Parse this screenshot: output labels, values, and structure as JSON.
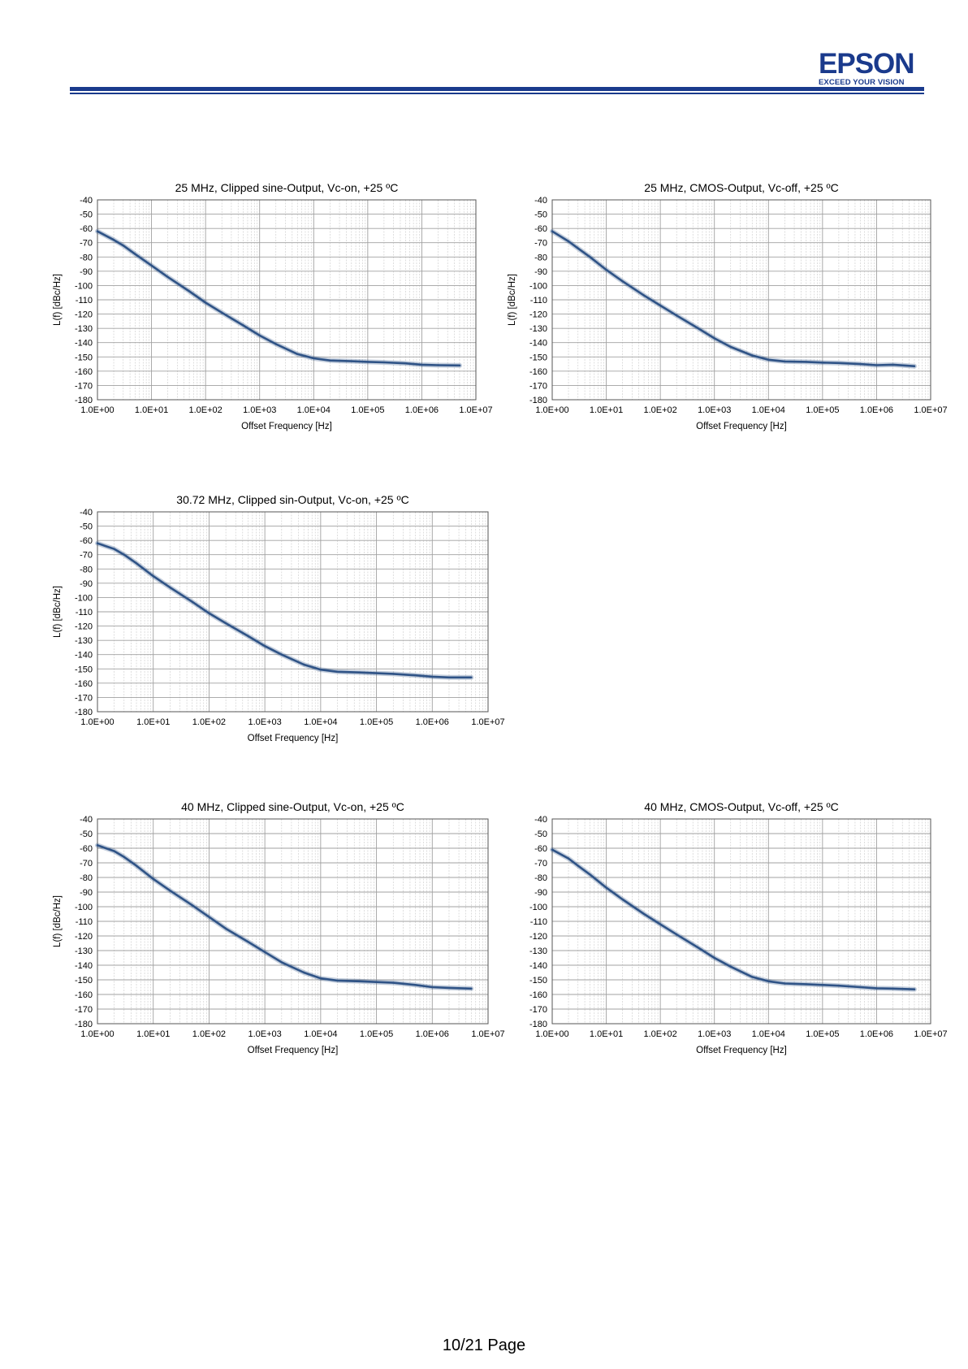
{
  "header": {
    "logo_text": "EPSON",
    "logo_tagline": "EXCEED YOUR VISION",
    "brand_color": "#1a3a8c"
  },
  "footer": {
    "page": "10/21 Page"
  },
  "chart_data": [
    {
      "type": "line",
      "title": "25 MHz, Clipped sine-Output, Vc-on, +25 ºC",
      "xlabel": "Offset Frequency [Hz]",
      "ylabel": "L(f) [dBc/Hz]",
      "x_scale": "log",
      "xlim": [
        1,
        10000000
      ],
      "ylim": [
        -180,
        -40
      ],
      "x_ticks": [
        "1.0E+00",
        "1.0E+01",
        "1.0E+02",
        "1.0E+03",
        "1.0E+04",
        "1.0E+05",
        "1.0E+06",
        "1.0E+07"
      ],
      "y_ticks": [
        "-40",
        "-50",
        "-60",
        "-70",
        "-80",
        "-90",
        "-100",
        "-110",
        "-120",
        "-130",
        "-140",
        "-150",
        "-160",
        "-170",
        "-180"
      ],
      "grid": true,
      "line_color": "#2f5386",
      "series": [
        {
          "x": [
            1,
            2,
            3,
            5,
            10,
            20,
            50,
            100,
            200,
            500,
            1000,
            2000,
            5000,
            10000,
            20000,
            50000,
            100000,
            200000,
            500000,
            1000000,
            2000000,
            5000000
          ],
          "y": [
            -62,
            -68,
            -72,
            -78,
            -86,
            -94,
            -104,
            -112,
            -119,
            -128,
            -135,
            -141,
            -148,
            -151,
            -152.5,
            -153,
            -153.5,
            -153.8,
            -154.5,
            -155.5,
            -155.8,
            -156
          ]
        }
      ]
    },
    {
      "type": "line",
      "title": "25 MHz, CMOS-Output, Vc-off, +25 ºC",
      "xlabel": "Offset Frequency [Hz]",
      "ylabel": "L(f) [dBc/Hz]",
      "x_scale": "log",
      "xlim": [
        1,
        10000000
      ],
      "ylim": [
        -180,
        -40
      ],
      "x_ticks": [
        "1.0E+00",
        "1.0E+01",
        "1.0E+02",
        "1.0E+03",
        "1.0E+04",
        "1.0E+05",
        "1.0E+06",
        "1.0E+07"
      ],
      "y_ticks": [
        "-40",
        "-50",
        "-60",
        "-70",
        "-80",
        "-90",
        "-100",
        "-110",
        "-120",
        "-130",
        "-140",
        "-150",
        "-160",
        "-170",
        "-180"
      ],
      "grid": true,
      "line_color": "#2f5386",
      "series": [
        {
          "x": [
            1,
            2,
            3,
            5,
            10,
            20,
            50,
            100,
            200,
            500,
            1000,
            2000,
            5000,
            10000,
            20000,
            50000,
            100000,
            200000,
            500000,
            1000000,
            2000000,
            5000000
          ],
          "y": [
            -62,
            -69,
            -74,
            -80,
            -89,
            -97,
            -107,
            -114,
            -121,
            -130,
            -137,
            -143,
            -149,
            -152,
            -153.2,
            -153.5,
            -154,
            -154.3,
            -155,
            -155.8,
            -155.5,
            -156.5
          ]
        }
      ]
    },
    {
      "type": "line",
      "title": "30.72 MHz, Clipped sin-Output, Vc-on, +25 ºC",
      "xlabel": "Offset Frequency [Hz]",
      "ylabel": "L(f) [dBc/Hz]",
      "x_scale": "log",
      "xlim": [
        1,
        10000000
      ],
      "ylim": [
        -180,
        -40
      ],
      "x_ticks": [
        "1.0E+00",
        "1.0E+01",
        "1.0E+02",
        "1.0E+03",
        "1.0E+04",
        "1.0E+05",
        "1.0E+06",
        "1.0E+07"
      ],
      "y_ticks": [
        "-40",
        "-50",
        "-60",
        "-70",
        "-80",
        "-90",
        "-100",
        "-110",
        "-120",
        "-130",
        "-140",
        "-150",
        "-160",
        "-170",
        "-180"
      ],
      "grid": true,
      "line_color": "#2f5386",
      "series": [
        {
          "x": [
            1,
            2,
            3,
            5,
            10,
            20,
            50,
            100,
            200,
            500,
            1000,
            2000,
            5000,
            10000,
            20000,
            50000,
            100000,
            200000,
            500000,
            1000000,
            2000000,
            5000000
          ],
          "y": [
            -62,
            -66,
            -70,
            -76,
            -85,
            -93,
            -103,
            -111,
            -118,
            -127,
            -134,
            -140,
            -147,
            -150.5,
            -152,
            -152.5,
            -153,
            -153.5,
            -154.5,
            -155.5,
            -156,
            -156
          ]
        }
      ]
    },
    {
      "type": "line",
      "title": "40 MHz, Clipped sine-Output, Vc-on, +25 ºC",
      "xlabel": "Offset Frequency [Hz]",
      "ylabel": "L(f) [dBc/Hz]",
      "x_scale": "log",
      "xlim": [
        1,
        10000000
      ],
      "ylim": [
        -180,
        -40
      ],
      "x_ticks": [
        "1.0E+00",
        "1.0E+01",
        "1.0E+02",
        "1.0E+03",
        "1.0E+04",
        "1.0E+05",
        "1.0E+06",
        "1.0E+07"
      ],
      "y_ticks": [
        "-40",
        "-50",
        "-60",
        "-70",
        "-80",
        "-90",
        "-100",
        "-110",
        "-120",
        "-130",
        "-140",
        "-150",
        "-160",
        "-170",
        "-180"
      ],
      "grid": true,
      "line_color": "#2f5386",
      "series": [
        {
          "x": [
            1,
            2,
            3,
            5,
            10,
            20,
            50,
            100,
            200,
            500,
            1000,
            2000,
            5000,
            10000,
            20000,
            50000,
            100000,
            200000,
            500000,
            1000000,
            2000000,
            5000000
          ],
          "y": [
            -58,
            -62,
            -66,
            -72,
            -81,
            -89,
            -99,
            -107,
            -115,
            -124,
            -131,
            -138,
            -145,
            -149,
            -150.5,
            -151,
            -151.5,
            -152,
            -153.5,
            -155,
            -155.5,
            -156
          ]
        }
      ]
    },
    {
      "type": "line",
      "title": "40 MHz, CMOS-Output, Vc-off, +25 ºC",
      "xlabel": "Offset Frequency [Hz]",
      "ylabel": "",
      "x_scale": "log",
      "xlim": [
        1,
        10000000
      ],
      "ylim": [
        -180,
        -40
      ],
      "x_ticks": [
        "1.0E+00",
        "1.0E+01",
        "1.0E+02",
        "1.0E+03",
        "1.0E+04",
        "1.0E+05",
        "1.0E+06",
        "1.0E+07"
      ],
      "y_ticks": [
        "-40",
        "-50",
        "-60",
        "-70",
        "-80",
        "-90",
        "-100",
        "-110",
        "-120",
        "-130",
        "-140",
        "-150",
        "-160",
        "-170",
        "-180"
      ],
      "grid": true,
      "line_color": "#2f5386",
      "series": [
        {
          "x": [
            1,
            2,
            3,
            5,
            10,
            20,
            50,
            100,
            200,
            500,
            1000,
            2000,
            5000,
            10000,
            20000,
            50000,
            100000,
            200000,
            500000,
            1000000,
            2000000,
            5000000
          ],
          "y": [
            -61,
            -67,
            -72,
            -78,
            -87,
            -95,
            -105,
            -112,
            -119,
            -128,
            -135,
            -141,
            -148,
            -151,
            -152.5,
            -153,
            -153.5,
            -154,
            -155,
            -155.8,
            -156,
            -156.5
          ]
        }
      ]
    }
  ]
}
